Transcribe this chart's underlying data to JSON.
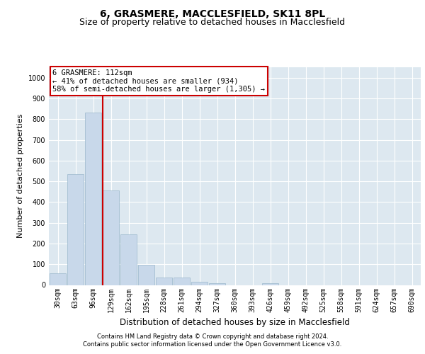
{
  "title": "6, GRASMERE, MACCLESFIELD, SK11 8PL",
  "subtitle": "Size of property relative to detached houses in Macclesfield",
  "xlabel": "Distribution of detached houses by size in Macclesfield",
  "ylabel": "Number of detached properties",
  "bar_labels": [
    "30sqm",
    "63sqm",
    "96sqm",
    "129sqm",
    "162sqm",
    "195sqm",
    "228sqm",
    "261sqm",
    "294sqm",
    "327sqm",
    "360sqm",
    "393sqm",
    "426sqm",
    "459sqm",
    "492sqm",
    "525sqm",
    "558sqm",
    "591sqm",
    "624sqm",
    "657sqm",
    "690sqm"
  ],
  "bar_values": [
    55,
    535,
    830,
    455,
    245,
    97,
    35,
    35,
    16,
    10,
    0,
    0,
    10,
    0,
    0,
    0,
    0,
    0,
    0,
    0,
    0
  ],
  "bar_color": "#c8d8ea",
  "bar_edge_color": "#9ab8cc",
  "vline_color": "#cc0000",
  "vline_x_bin": 2.55,
  "background_color": "#ffffff",
  "plot_bg_color": "#dde8f0",
  "ylim": [
    0,
    1050
  ],
  "yticks": [
    0,
    100,
    200,
    300,
    400,
    500,
    600,
    700,
    800,
    900,
    1000
  ],
  "annotation_text": "6 GRASMERE: 112sqm\n← 41% of detached houses are smaller (934)\n58% of semi-detached houses are larger (1,305) →",
  "annotation_box_color": "#ffffff",
  "annotation_box_edge": "#cc0000",
  "footer_line1": "Contains HM Land Registry data © Crown copyright and database right 2024.",
  "footer_line2": "Contains public sector information licensed under the Open Government Licence v3.0.",
  "title_fontsize": 10,
  "subtitle_fontsize": 9,
  "tick_fontsize": 7,
  "ylabel_fontsize": 8,
  "xlabel_fontsize": 8.5,
  "annotation_fontsize": 7.5,
  "footer_fontsize": 6
}
